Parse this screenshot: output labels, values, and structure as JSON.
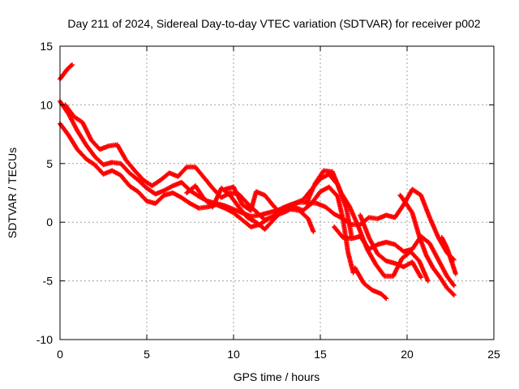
{
  "chart_data": {
    "type": "scatter",
    "title": "Day 211 of 2024, Sidereal Day-to-day VTEC variation (SDTVAR) for receiver p002",
    "xlabel": "GPS time / hours",
    "ylabel": "SDTVAR / TECUs",
    "xlim": [
      0,
      25
    ],
    "ylim": [
      -10,
      15
    ],
    "xticks": [
      "0",
      "5",
      "10",
      "15",
      "20",
      "25"
    ],
    "yticks": [
      "-10",
      "-5",
      "0",
      "5",
      "10",
      "15"
    ],
    "xtick_values": [
      0,
      5,
      10,
      15,
      20,
      25
    ],
    "ytick_values": [
      -10,
      -5,
      0,
      5,
      10,
      15
    ],
    "grid": true,
    "marker": "+",
    "color": "#ff0000",
    "series": [
      {
        "name": "t1",
        "points": [
          [
            0.0,
            12.2
          ],
          [
            0.2,
            12.6
          ],
          [
            0.4,
            13.0
          ],
          [
            0.6,
            13.3
          ],
          [
            0.7,
            13.4
          ]
        ]
      },
      {
        "name": "t2",
        "points": [
          [
            0.0,
            10.3
          ],
          [
            0.5,
            9.2
          ],
          [
            1.0,
            7.8
          ],
          [
            1.5,
            6.6
          ],
          [
            2.0,
            5.6
          ],
          [
            2.5,
            4.9
          ],
          [
            3.0,
            5.1
          ],
          [
            3.5,
            5.0
          ],
          [
            4.0,
            4.2
          ],
          [
            4.5,
            3.6
          ],
          [
            5.0,
            2.9
          ],
          [
            5.5,
            2.4
          ],
          [
            6.0,
            2.7
          ],
          [
            6.5,
            3.1
          ],
          [
            7.0,
            3.4
          ],
          [
            7.5,
            2.7
          ],
          [
            8.0,
            2.2
          ],
          [
            8.5,
            1.8
          ],
          [
            9.0,
            1.6
          ],
          [
            9.5,
            1.4
          ],
          [
            10.0,
            1.1
          ],
          [
            10.5,
            0.8
          ],
          [
            11.0,
            0.5
          ],
          [
            11.5,
            0.6
          ],
          [
            12.0,
            0.8
          ],
          [
            12.5,
            1.0
          ],
          [
            13.0,
            1.3
          ],
          [
            13.5,
            1.6
          ],
          [
            14.0,
            1.9
          ],
          [
            14.5,
            2.8
          ],
          [
            15.0,
            3.7
          ],
          [
            15.5,
            4.1
          ],
          [
            16.0,
            3.2
          ],
          [
            16.5,
            1.2
          ],
          [
            16.8,
            -1.2
          ]
        ]
      },
      {
        "name": "t3",
        "points": [
          [
            0.0,
            8.4
          ],
          [
            0.5,
            7.4
          ],
          [
            1.0,
            6.2
          ],
          [
            1.5,
            5.4
          ],
          [
            2.0,
            4.9
          ],
          [
            2.5,
            4.1
          ],
          [
            3.0,
            4.4
          ],
          [
            3.5,
            4.0
          ],
          [
            4.0,
            3.1
          ],
          [
            4.5,
            2.6
          ],
          [
            5.0,
            1.8
          ],
          [
            5.5,
            1.6
          ],
          [
            6.0,
            2.3
          ],
          [
            6.5,
            2.5
          ],
          [
            7.0,
            2.1
          ],
          [
            7.5,
            1.6
          ],
          [
            8.0,
            1.2
          ],
          [
            8.5,
            1.3
          ],
          [
            9.0,
            1.5
          ],
          [
            9.5,
            1.2
          ],
          [
            10.0,
            0.8
          ],
          [
            10.5,
            0.2
          ],
          [
            11.0,
            -0.4
          ],
          [
            11.5,
            -0.2
          ],
          [
            12.0,
            0.3
          ],
          [
            12.5,
            0.6
          ],
          [
            13.0,
            0.9
          ],
          [
            13.5,
            1.3
          ],
          [
            14.0,
            1.0
          ],
          [
            14.5,
            1.6
          ],
          [
            15.0,
            2.6
          ],
          [
            15.5,
            3.0
          ],
          [
            16.0,
            2.2
          ],
          [
            16.3,
            0.3
          ],
          [
            16.6,
            -2.6
          ],
          [
            16.9,
            -4.3
          ]
        ]
      },
      {
        "name": "t4",
        "points": [
          [
            0.3,
            10.0
          ],
          [
            0.8,
            9.0
          ],
          [
            1.3,
            8.5
          ],
          [
            1.8,
            7.0
          ],
          [
            2.3,
            6.2
          ],
          [
            2.8,
            6.5
          ],
          [
            3.3,
            6.6
          ],
          [
            3.8,
            5.3
          ],
          [
            4.3,
            4.4
          ],
          [
            4.8,
            3.6
          ],
          [
            5.3,
            3.1
          ],
          [
            5.8,
            3.6
          ],
          [
            6.3,
            4.2
          ],
          [
            6.8,
            3.9
          ],
          [
            7.3,
            4.7
          ],
          [
            7.8,
            4.7
          ],
          [
            8.3,
            3.8
          ],
          [
            8.8,
            2.9
          ],
          [
            9.3,
            2.1
          ],
          [
            9.8,
            2.5
          ],
          [
            10.3,
            2.4
          ],
          [
            10.8,
            1.6
          ],
          [
            11.3,
            0.9
          ],
          [
            11.8,
            0.2
          ],
          [
            12.3,
            0.5
          ],
          [
            12.8,
            1.2
          ],
          [
            13.3,
            1.5
          ],
          [
            13.8,
            1.7
          ],
          [
            14.3,
            1.7
          ],
          [
            14.8,
            1.6
          ],
          [
            15.3,
            1.3
          ],
          [
            15.8,
            0.7
          ],
          [
            16.3,
            0.3
          ],
          [
            16.8,
            -0.2
          ],
          [
            17.3,
            -0.2
          ],
          [
            17.8,
            0.4
          ],
          [
            18.3,
            0.3
          ],
          [
            18.8,
            0.6
          ],
          [
            19.3,
            0.4
          ],
          [
            19.8,
            1.5
          ],
          [
            20.3,
            2.8
          ],
          [
            20.8,
            2.3
          ],
          [
            21.3,
            0.4
          ],
          [
            21.8,
            -1.3
          ],
          [
            22.3,
            -2.6
          ],
          [
            22.7,
            -3.2
          ]
        ]
      },
      {
        "name": "t5",
        "points": [
          [
            7.3,
            2.5
          ],
          [
            7.8,
            3.1
          ],
          [
            8.3,
            2.0
          ],
          [
            8.8,
            1.3
          ],
          [
            9.3,
            2.9
          ],
          [
            9.8,
            2.3
          ],
          [
            10.3,
            1.3
          ],
          [
            10.8,
            0.4
          ],
          [
            11.3,
            0.0
          ],
          [
            11.8,
            -0.6
          ],
          [
            12.3,
            0.2
          ],
          [
            12.8,
            1.0
          ],
          [
            13.3,
            1.1
          ],
          [
            13.8,
            1.0
          ],
          [
            14.3,
            0.3
          ],
          [
            14.6,
            -0.8
          ]
        ]
      },
      {
        "name": "t6",
        "points": [
          [
            9.5,
            2.8
          ],
          [
            10.0,
            3.0
          ],
          [
            10.5,
            1.5
          ],
          [
            11.0,
            1.0
          ],
          [
            11.3,
            2.6
          ],
          [
            11.8,
            2.3
          ],
          [
            12.3,
            1.4
          ],
          [
            12.6,
            0.9
          ]
        ]
      },
      {
        "name": "t7",
        "points": [
          [
            14.2,
            1.6
          ],
          [
            14.7,
            3.3
          ],
          [
            15.2,
            4.4
          ],
          [
            15.7,
            4.3
          ],
          [
            16.2,
            2.5
          ],
          [
            16.7,
            1.3
          ],
          [
            17.2,
            -0.4
          ],
          [
            17.7,
            -2.3
          ],
          [
            18.2,
            -3.6
          ],
          [
            18.7,
            -4.6
          ],
          [
            19.2,
            -4.6
          ],
          [
            19.7,
            -3.1
          ],
          [
            20.2,
            -2.5
          ],
          [
            20.7,
            -3.3
          ],
          [
            21.2,
            -5.0
          ]
        ]
      },
      {
        "name": "t8",
        "points": [
          [
            15.8,
            -0.4
          ],
          [
            16.3,
            -1.3
          ],
          [
            16.8,
            -1.4
          ],
          [
            17.3,
            -1.2
          ],
          [
            17.8,
            -2.3
          ],
          [
            18.3,
            -1.9
          ],
          [
            18.8,
            -1.7
          ],
          [
            19.3,
            -1.9
          ],
          [
            19.8,
            -2.5
          ],
          [
            20.3,
            -2.3
          ],
          [
            20.8,
            -1.2
          ],
          [
            21.3,
            -1.8
          ],
          [
            21.8,
            -3.2
          ],
          [
            22.3,
            -4.6
          ],
          [
            22.7,
            -5.4
          ]
        ]
      },
      {
        "name": "t9",
        "points": [
          [
            17.0,
            -3.9
          ],
          [
            17.5,
            -5.2
          ],
          [
            18.0,
            -5.8
          ],
          [
            18.5,
            -6.1
          ],
          [
            18.8,
            -6.5
          ]
        ]
      },
      {
        "name": "t10",
        "points": [
          [
            19.6,
            2.3
          ],
          [
            19.9,
            1.7
          ],
          [
            20.3,
            0.8
          ],
          [
            20.7,
            -1.2
          ],
          [
            21.1,
            -2.8
          ],
          [
            21.5,
            -3.9
          ],
          [
            21.9,
            -4.7
          ],
          [
            22.3,
            -5.6
          ],
          [
            22.7,
            -6.2
          ]
        ]
      },
      {
        "name": "t11",
        "points": [
          [
            17.3,
            0.6
          ],
          [
            17.8,
            -1.3
          ],
          [
            18.3,
            -2.7
          ],
          [
            18.8,
            -3.3
          ],
          [
            19.3,
            -3.5
          ],
          [
            19.8,
            -3.8
          ],
          [
            20.3,
            -3.4
          ],
          [
            20.8,
            -4.7
          ]
        ]
      },
      {
        "name": "t12",
        "points": [
          [
            22.0,
            -1.3
          ],
          [
            22.3,
            -2.2
          ],
          [
            22.6,
            -3.5
          ],
          [
            22.8,
            -4.4
          ]
        ]
      }
    ]
  }
}
